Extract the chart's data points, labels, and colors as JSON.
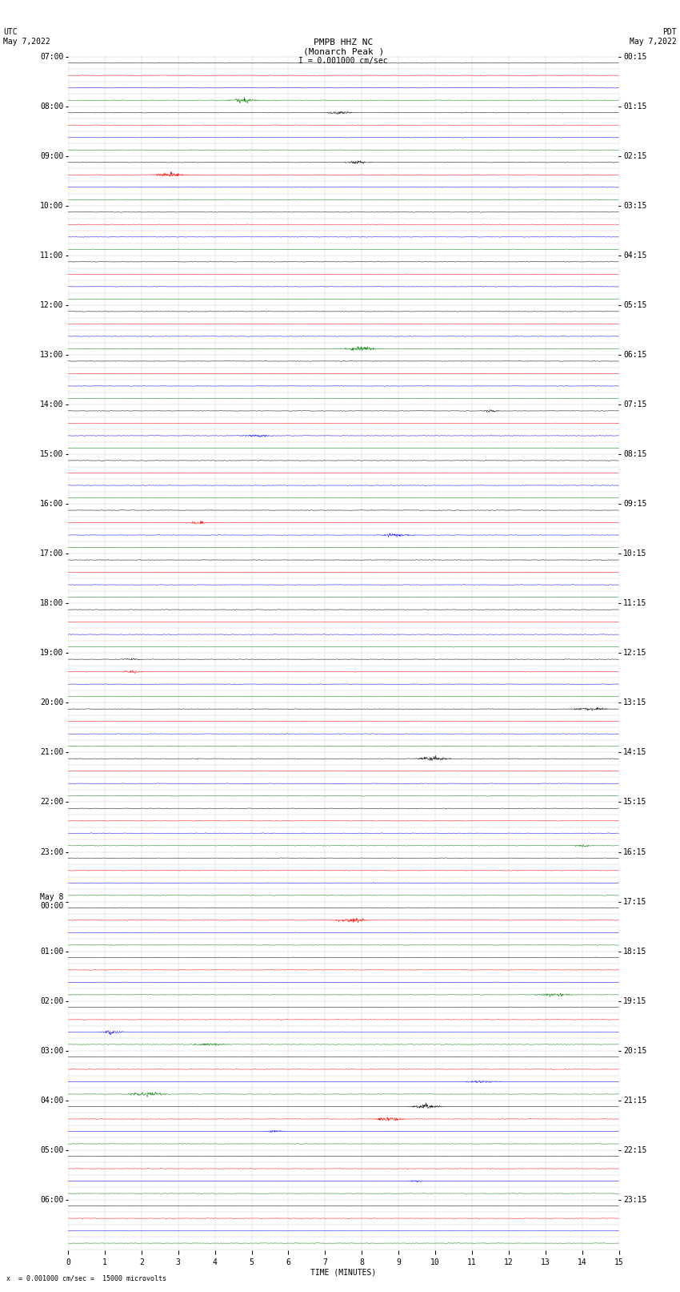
{
  "title_line1": "PMPB HHZ NC",
  "title_line2": "(Monarch Peak )",
  "scale_text": "= 0.001000 cm/sec =  15000 microvolts",
  "utc_label": "UTC",
  "utc_date": "May 7,2022",
  "pdt_label": "PDT",
  "pdt_date": "May 7,2022",
  "xlabel": "TIME (MINUTES)",
  "scale_value": "I = 0.001000 cm/sec",
  "left_times": [
    "07:00",
    "",
    "",
    "",
    "08:00",
    "",
    "",
    "",
    "09:00",
    "",
    "",
    "",
    "10:00",
    "",
    "",
    "",
    "11:00",
    "",
    "",
    "",
    "12:00",
    "",
    "",
    "",
    "13:00",
    "",
    "",
    "",
    "14:00",
    "",
    "",
    "",
    "15:00",
    "",
    "",
    "",
    "16:00",
    "",
    "",
    "",
    "17:00",
    "",
    "",
    "",
    "18:00",
    "",
    "",
    "",
    "19:00",
    "",
    "",
    "",
    "20:00",
    "",
    "",
    "",
    "21:00",
    "",
    "",
    "",
    "22:00",
    "",
    "",
    "",
    "23:00",
    "",
    "",
    "",
    "May 8\n00:00",
    "",
    "",
    "",
    "01:00",
    "",
    "",
    "",
    "02:00",
    "",
    "",
    "",
    "03:00",
    "",
    "",
    "",
    "04:00",
    "",
    "",
    "",
    "05:00",
    "",
    "",
    "",
    "06:00",
    "",
    "",
    ""
  ],
  "right_times": [
    "00:15",
    "",
    "",
    "",
    "01:15",
    "",
    "",
    "",
    "02:15",
    "",
    "",
    "",
    "03:15",
    "",
    "",
    "",
    "04:15",
    "",
    "",
    "",
    "05:15",
    "",
    "",
    "",
    "06:15",
    "",
    "",
    "",
    "07:15",
    "",
    "",
    "",
    "08:15",
    "",
    "",
    "",
    "09:15",
    "",
    "",
    "",
    "10:15",
    "",
    "",
    "",
    "11:15",
    "",
    "",
    "",
    "12:15",
    "",
    "",
    "",
    "13:15",
    "",
    "",
    "",
    "14:15",
    "",
    "",
    "",
    "15:15",
    "",
    "",
    "",
    "16:15",
    "",
    "",
    "",
    "17:15",
    "",
    "",
    "",
    "18:15",
    "",
    "",
    "",
    "19:15",
    "",
    "",
    "",
    "20:15",
    "",
    "",
    "",
    "21:15",
    "",
    "",
    "",
    "22:15",
    "",
    "",
    "",
    "23:15",
    "",
    "",
    ""
  ],
  "trace_colors": [
    "black",
    "red",
    "blue",
    "green"
  ],
  "num_rows": 96,
  "xmin": 0,
  "xmax": 15,
  "bg_color": "white",
  "trace_amplitude": 0.12,
  "noise_scale": 0.015,
  "font_size_title": 8,
  "font_size_labels": 7,
  "font_size_ticks": 7
}
